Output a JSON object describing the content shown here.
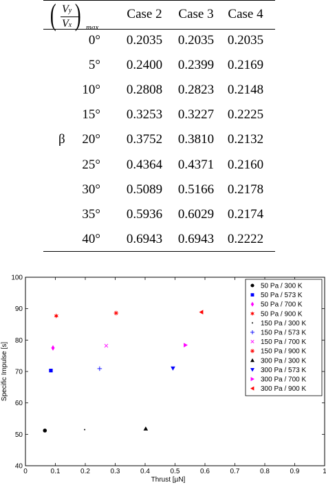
{
  "table": {
    "header": {
      "fraction": {
        "num_symbol": "V",
        "num_sub": "y",
        "den_symbol": "V",
        "den_sub": "x",
        "subscript": "max"
      },
      "columns": [
        "Case 2",
        "Case 3",
        "Case 4"
      ]
    },
    "row_label": "β",
    "rows": [
      {
        "angle": "0°",
        "values": [
          "0.2035",
          "0.2035",
          "0.2035"
        ]
      },
      {
        "angle": "5°",
        "values": [
          "0.2400",
          "0.2399",
          "0.2169"
        ]
      },
      {
        "angle": "10°",
        "values": [
          "0.2808",
          "0.2823",
          "0.2148"
        ]
      },
      {
        "angle": "15°",
        "values": [
          "0.3253",
          "0.3227",
          "0.2225"
        ]
      },
      {
        "angle": "20°",
        "values": [
          "0.3752",
          "0.3810",
          "0.2132"
        ]
      },
      {
        "angle": "25°",
        "values": [
          "0.4364",
          "0.4371",
          "0.2160"
        ]
      },
      {
        "angle": "30°",
        "values": [
          "0.5089",
          "0.5166",
          "0.2178"
        ]
      },
      {
        "angle": "35°",
        "values": [
          "0.5936",
          "0.6029",
          "0.2174"
        ]
      },
      {
        "angle": "40°",
        "values": [
          "0.6943",
          "0.6943",
          "0.2222"
        ]
      }
    ]
  },
  "chart_data": {
    "type": "scatter",
    "title": "",
    "xlabel": "Thrust [µN]",
    "ylabel": "Specific Impulse [s]",
    "xlim": [
      0,
      1
    ],
    "ylim": [
      40,
      100
    ],
    "xticks": [
      "0",
      "0.1",
      "0.2",
      "0.3",
      "0.4",
      "0.5",
      "0.6",
      "0.7",
      "0.8",
      "0.9",
      "1"
    ],
    "yticks": [
      "40",
      "50",
      "60",
      "70",
      "80",
      "90",
      "100"
    ],
    "grid": false,
    "legend_position": "top-right",
    "series": [
      {
        "name": "50 Pa / 300 K",
        "marker": "circle",
        "color": "#000000",
        "x": 0.065,
        "y": 51.2
      },
      {
        "name": "50 Pa / 573 K",
        "marker": "square",
        "color": "#0000ff",
        "x": 0.085,
        "y": 70.3
      },
      {
        "name": "50 Pa / 700 K",
        "marker": "diamond",
        "color": "#ff00ff",
        "x": 0.092,
        "y": 77.5
      },
      {
        "name": "50 Pa / 900 K",
        "marker": "hexagram",
        "color": "#ff0000",
        "x": 0.103,
        "y": 87.7
      },
      {
        "name": "150 Pa / 300 K",
        "marker": "point",
        "color": "#000000",
        "x": 0.198,
        "y": 51.5
      },
      {
        "name": "150 Pa / 573 K",
        "marker": "plus",
        "color": "#0000ff",
        "x": 0.248,
        "y": 70.9
      },
      {
        "name": "150 Pa / 700 K",
        "marker": "x",
        "color": "#ff00ff",
        "x": 0.27,
        "y": 78.2
      },
      {
        "name": "150 Pa / 900 K",
        "marker": "star",
        "color": "#ff0000",
        "x": 0.303,
        "y": 88.6
      },
      {
        "name": "300 Pa / 300 K",
        "marker": "triangle-up",
        "color": "#000000",
        "x": 0.402,
        "y": 51.8
      },
      {
        "name": "300 Pa / 573 K",
        "marker": "triangle-down",
        "color": "#0000ff",
        "x": 0.493,
        "y": 71.0
      },
      {
        "name": "300 Pa / 700 K",
        "marker": "triangle-right",
        "color": "#ff00ff",
        "x": 0.535,
        "y": 78.4
      },
      {
        "name": "300 Pa / 900 K",
        "marker": "triangle-left",
        "color": "#ff0000",
        "x": 0.588,
        "y": 88.9
      }
    ]
  }
}
